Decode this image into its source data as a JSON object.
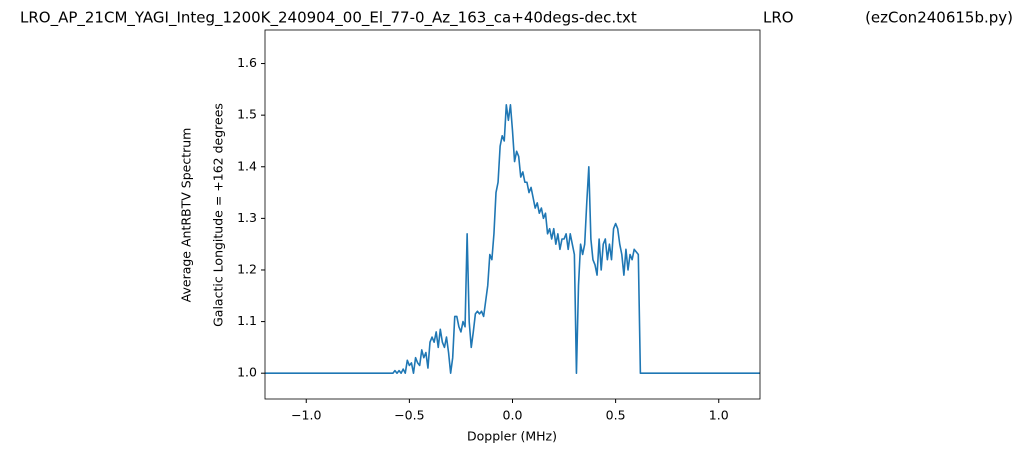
{
  "chart_data": {
    "type": "line",
    "title": [
      "LRO_AP_21CM_YAGI_Integ_1200K_240904_00_El_77-0_Az_163_ca+40degs-dec.txt",
      "LRO",
      "(ezCon240615b.py)"
    ],
    "xlabel": "Doppler (MHz)",
    "ylabel": [
      "Average AntRBTV Spectrum",
      "Galactic Longitude = +162 degrees"
    ],
    "xlim": [
      -1.2,
      1.2
    ],
    "ylim": [
      0.95,
      1.665
    ],
    "xticks": [
      {
        "value": -1,
        "label": "−1.0"
      },
      {
        "value": -0.5,
        "label": "−0.5"
      },
      {
        "value": 0,
        "label": "0.0"
      },
      0.5,
      {
        "value": 1,
        "label": "1.0"
      }
    ],
    "yticks": [
      {
        "value": 1,
        "label": "1.0"
      },
      1.1,
      1.2,
      1.3,
      1.4,
      1.5,
      1.6
    ],
    "series": [
      {
        "color": "#1f77b4",
        "x": [
          -1.2,
          -0.58,
          -0.57,
          -0.56,
          -0.55,
          -0.54,
          -0.53,
          -0.52,
          -0.51,
          -0.5,
          -0.49,
          -0.48,
          -0.47,
          -0.46,
          -0.45,
          -0.44,
          -0.43,
          -0.42,
          -0.41,
          -0.4,
          -0.39,
          -0.38,
          -0.37,
          -0.36,
          -0.35,
          -0.34,
          -0.33,
          -0.32,
          -0.31,
          -0.3,
          -0.29,
          -0.28,
          -0.27,
          -0.26,
          -0.25,
          -0.24,
          -0.23,
          -0.22,
          -0.21,
          -0.2,
          -0.19,
          -0.18,
          -0.17,
          -0.16,
          -0.15,
          -0.14,
          -0.13,
          -0.12,
          -0.11,
          -0.1,
          -0.09,
          -0.08,
          -0.07,
          -0.06,
          -0.05,
          -0.04,
          -0.03,
          -0.02,
          -0.01,
          0,
          0.01,
          0.02,
          0.03,
          0.04,
          0.05,
          0.06,
          0.07,
          0.08,
          0.09,
          0.1,
          0.11,
          0.12,
          0.13,
          0.14,
          0.15,
          0.16,
          0.17,
          0.18,
          0.19,
          0.2,
          0.21,
          0.22,
          0.23,
          0.24,
          0.25,
          0.26,
          0.27,
          0.28,
          0.29,
          0.3,
          0.31,
          0.32,
          0.33,
          0.34,
          0.35,
          0.36,
          0.37,
          0.38,
          0.39,
          0.4,
          0.41,
          0.42,
          0.43,
          0.44,
          0.45,
          0.46,
          0.47,
          0.48,
          0.49,
          0.5,
          0.51,
          0.52,
          0.53,
          0.54,
          0.55,
          0.56,
          0.57,
          0.58,
          0.59,
          0.6,
          0.61,
          0.62,
          1.2
        ],
        "values": [
          1,
          1,
          1.005,
          1,
          1.005,
          1,
          1.008,
          1,
          1.025,
          1.015,
          1.02,
          1,
          1.03,
          1.02,
          1.015,
          1.045,
          1.03,
          1.04,
          1.01,
          1.06,
          1.07,
          1.06,
          1.08,
          1.05,
          1.085,
          1.06,
          1.05,
          1.07,
          1.04,
          1,
          1.03,
          1.11,
          1.11,
          1.09,
          1.08,
          1.1,
          1.09,
          1.27,
          1.1,
          1.05,
          1.08,
          1.115,
          1.12,
          1.115,
          1.12,
          1.11,
          1.14,
          1.17,
          1.23,
          1.22,
          1.27,
          1.35,
          1.37,
          1.44,
          1.46,
          1.45,
          1.52,
          1.49,
          1.52,
          1.47,
          1.41,
          1.43,
          1.42,
          1.38,
          1.39,
          1.37,
          1.37,
          1.35,
          1.36,
          1.34,
          1.32,
          1.33,
          1.31,
          1.32,
          1.3,
          1.31,
          1.27,
          1.28,
          1.26,
          1.28,
          1.25,
          1.27,
          1.24,
          1.26,
          1.26,
          1.27,
          1.24,
          1.27,
          1.25,
          1.23,
          1,
          1.17,
          1.25,
          1.23,
          1.25,
          1.33,
          1.4,
          1.26,
          1.22,
          1.21,
          1.19,
          1.26,
          1.2,
          1.25,
          1.26,
          1.22,
          1.25,
          1.22,
          1.28,
          1.29,
          1.28,
          1.25,
          1.23,
          1.19,
          1.24,
          1.2,
          1.23,
          1.22,
          1.24,
          1.235,
          1.23,
          1,
          1
        ]
      }
    ]
  }
}
